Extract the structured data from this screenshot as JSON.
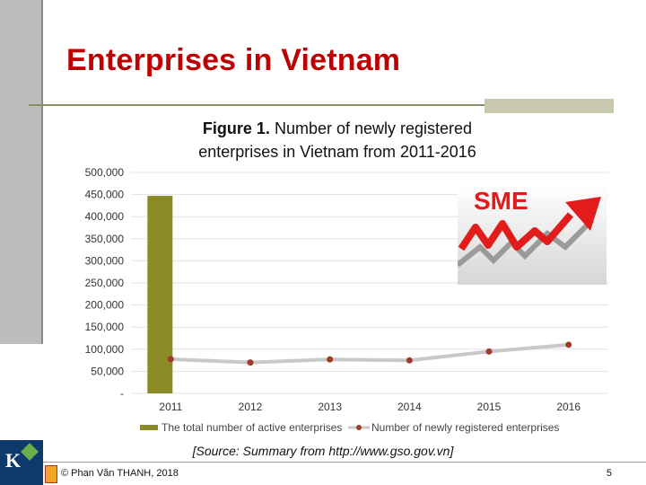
{
  "slide": {
    "title": "Enterprises in Vietnam",
    "figure_label": "Figure 1.",
    "figure_caption_line1": "Number of newly registered",
    "figure_caption_line2": "enterprises in Vietnam from 2011-2016",
    "source": "[Source: Summary from http://www.gso.gov.vn]",
    "copyright": "© Phan Văn THANH, 2018",
    "page_number": "5",
    "logo_text": "K",
    "sme_logo_text": "SME"
  },
  "chart_data": {
    "type": "bar",
    "title": "Number of newly registered enterprises in Vietnam from 2011-2016",
    "categories": [
      "2011",
      "2012",
      "2013",
      "2014",
      "2015",
      "2016"
    ],
    "y_ticks": [
      "500,000",
      "450,000",
      "400,000",
      "350,000",
      "300,000",
      "250,000",
      "200,000",
      "150,000",
      "100,000",
      "50,000",
      "-"
    ],
    "ylim": [
      0,
      500000
    ],
    "grid": true,
    "legend_position": "bottom",
    "series": [
      {
        "name": "The total number of active enterprises",
        "chart_type": "bar",
        "color": "#8a8a26",
        "values": [
          447000,
          null,
          null,
          null,
          null,
          null
        ]
      },
      {
        "name": "Number of newly registered enterprises",
        "chart_type": "line",
        "line_color": "#c8c8c8",
        "marker_color": "#9b3b2a",
        "values": [
          77500,
          69900,
          76900,
          74800,
          94800,
          110100
        ]
      }
    ]
  }
}
